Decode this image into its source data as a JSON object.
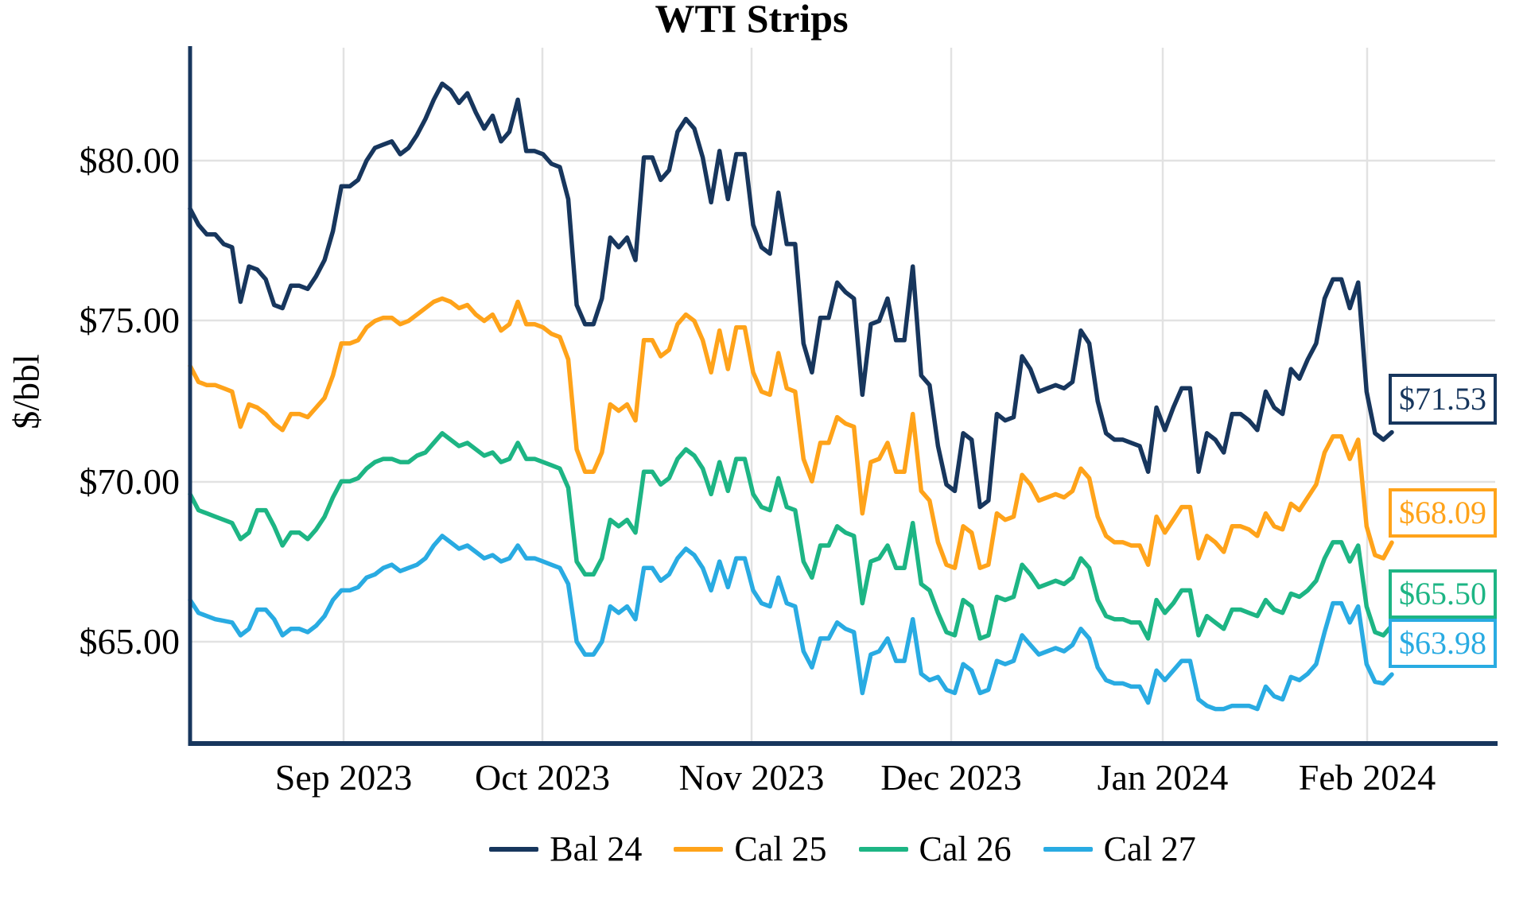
{
  "chart_data": {
    "type": "line",
    "title": "WTI Strips",
    "ylabel": "$/bbl",
    "grid": true,
    "legend_position": "bottom",
    "x_axis": {
      "tick_labels": [
        "Sep 2023",
        "Oct 2023",
        "Nov 2023",
        "Dec 2023",
        "Jan 2024",
        "Feb 2024"
      ],
      "range_dates": [
        "Aug 2023",
        "Feb 2024"
      ]
    },
    "y_axis": {
      "tick_labels": [
        "$80.00",
        "$75.00",
        "$70.00",
        "$65.00"
      ],
      "tick_values": [
        80,
        75,
        70,
        65
      ],
      "range": [
        61.8,
        83.5
      ]
    },
    "series": [
      {
        "name": "Bal 24",
        "color": "#17365d",
        "end_label": "$71.53",
        "last_value": 71.53,
        "values": [
          78.5,
          78.0,
          77.7,
          77.7,
          77.4,
          77.3,
          75.6,
          76.7,
          76.6,
          76.3,
          75.5,
          75.4,
          76.1,
          76.1,
          76.0,
          76.4,
          76.9,
          77.8,
          79.2,
          79.2,
          79.4,
          80.0,
          80.4,
          80.5,
          80.6,
          80.2,
          80.4,
          80.8,
          81.3,
          81.9,
          82.4,
          82.2,
          81.8,
          82.1,
          81.5,
          81.0,
          81.4,
          80.6,
          80.9,
          81.9,
          80.3,
          80.3,
          80.2,
          79.9,
          79.8,
          78.8,
          75.5,
          74.9,
          74.9,
          75.7,
          77.6,
          77.3,
          77.6,
          76.9,
          80.1,
          80.1,
          79.4,
          79.7,
          80.9,
          81.3,
          81.0,
          80.1,
          78.7,
          80.3,
          78.8,
          80.2,
          80.2,
          78.0,
          77.3,
          77.1,
          79.0,
          77.4,
          77.4,
          74.3,
          73.4,
          75.1,
          75.1,
          76.2,
          75.9,
          75.7,
          72.7,
          74.9,
          75.0,
          75.7,
          74.4,
          74.4,
          76.7,
          73.3,
          73.0,
          71.1,
          69.9,
          69.7,
          71.5,
          71.3,
          69.2,
          69.4,
          72.1,
          71.9,
          72.0,
          73.9,
          73.5,
          72.8,
          72.9,
          73.0,
          72.9,
          73.1,
          74.7,
          74.3,
          72.5,
          71.5,
          71.3,
          71.3,
          71.2,
          71.1,
          70.3,
          72.3,
          71.6,
          72.3,
          72.9,
          72.9,
          70.3,
          71.5,
          71.3,
          70.9,
          72.1,
          72.1,
          71.9,
          71.6,
          72.8,
          72.3,
          72.1,
          73.5,
          73.2,
          73.8,
          74.3,
          75.7,
          76.3,
          76.3,
          75.4,
          76.2,
          72.8,
          71.5,
          71.3,
          71.53
        ]
      },
      {
        "name": "Cal 25",
        "color": "#ffa31a",
        "end_label": "$68.09",
        "last_value": 68.09,
        "values": [
          73.6,
          73.1,
          73.0,
          73.0,
          72.9,
          72.8,
          71.7,
          72.4,
          72.3,
          72.1,
          71.8,
          71.6,
          72.1,
          72.1,
          72.0,
          72.3,
          72.6,
          73.3,
          74.3,
          74.3,
          74.4,
          74.8,
          75.0,
          75.1,
          75.1,
          74.9,
          75.0,
          75.2,
          75.4,
          75.6,
          75.7,
          75.6,
          75.4,
          75.5,
          75.2,
          75.0,
          75.2,
          74.7,
          74.9,
          75.6,
          74.9,
          74.9,
          74.8,
          74.6,
          74.5,
          73.8,
          71.0,
          70.3,
          70.3,
          70.9,
          72.4,
          72.2,
          72.4,
          71.9,
          74.4,
          74.4,
          73.9,
          74.1,
          74.9,
          75.2,
          75.0,
          74.4,
          73.4,
          74.7,
          73.5,
          74.8,
          74.8,
          73.4,
          72.8,
          72.7,
          74.0,
          72.9,
          72.8,
          70.7,
          70.0,
          71.2,
          71.2,
          72.0,
          71.8,
          71.7,
          69.0,
          70.6,
          70.7,
          71.2,
          70.3,
          70.3,
          72.1,
          69.7,
          69.4,
          68.1,
          67.4,
          67.3,
          68.6,
          68.4,
          67.3,
          67.4,
          69.0,
          68.8,
          68.9,
          70.2,
          69.9,
          69.4,
          69.5,
          69.6,
          69.5,
          69.7,
          70.4,
          70.1,
          68.9,
          68.3,
          68.1,
          68.1,
          68.0,
          68.0,
          67.4,
          68.9,
          68.4,
          68.8,
          69.2,
          69.2,
          67.6,
          68.3,
          68.1,
          67.8,
          68.6,
          68.6,
          68.5,
          68.3,
          69.0,
          68.6,
          68.5,
          69.3,
          69.1,
          69.5,
          69.9,
          70.9,
          71.4,
          71.4,
          70.7,
          71.3,
          68.6,
          67.7,
          67.6,
          68.09
        ]
      },
      {
        "name": "Cal 26",
        "color": "#1db584",
        "end_label": "$65.50",
        "last_value": 65.5,
        "values": [
          69.6,
          69.1,
          69.0,
          68.9,
          68.8,
          68.7,
          68.2,
          68.4,
          69.1,
          69.1,
          68.6,
          68.0,
          68.4,
          68.4,
          68.2,
          68.5,
          68.9,
          69.5,
          70.0,
          70.0,
          70.1,
          70.4,
          70.6,
          70.7,
          70.7,
          70.6,
          70.6,
          70.8,
          70.9,
          71.2,
          71.5,
          71.3,
          71.1,
          71.2,
          71.0,
          70.8,
          70.9,
          70.6,
          70.7,
          71.2,
          70.7,
          70.7,
          70.6,
          70.5,
          70.4,
          69.8,
          67.5,
          67.1,
          67.1,
          67.6,
          68.8,
          68.6,
          68.8,
          68.4,
          70.3,
          70.3,
          69.9,
          70.1,
          70.7,
          71.0,
          70.8,
          70.4,
          69.6,
          70.6,
          69.7,
          70.7,
          70.7,
          69.6,
          69.2,
          69.1,
          70.1,
          69.2,
          69.1,
          67.5,
          67.0,
          68.0,
          68.0,
          68.6,
          68.4,
          68.3,
          66.2,
          67.5,
          67.6,
          68.0,
          67.3,
          67.3,
          68.7,
          66.8,
          66.6,
          65.9,
          65.3,
          65.2,
          66.3,
          66.1,
          65.1,
          65.2,
          66.4,
          66.3,
          66.4,
          67.4,
          67.1,
          66.7,
          66.8,
          66.9,
          66.8,
          67.0,
          67.6,
          67.3,
          66.3,
          65.8,
          65.7,
          65.7,
          65.6,
          65.6,
          65.1,
          66.3,
          65.9,
          66.2,
          66.6,
          66.6,
          65.2,
          65.8,
          65.6,
          65.4,
          66.0,
          66.0,
          65.9,
          65.8,
          66.3,
          66.0,
          65.9,
          66.5,
          66.4,
          66.6,
          66.9,
          67.6,
          68.1,
          68.1,
          67.5,
          68.0,
          66.1,
          65.3,
          65.2,
          65.5
        ]
      },
      {
        "name": "Cal 27",
        "color": "#29abe2",
        "end_label": "$63.98",
        "last_value": 63.98,
        "values": [
          66.3,
          65.9,
          65.8,
          65.7,
          65.65,
          65.6,
          65.2,
          65.4,
          66.0,
          66.0,
          65.7,
          65.2,
          65.4,
          65.4,
          65.3,
          65.5,
          65.8,
          66.3,
          66.6,
          66.6,
          66.7,
          67.0,
          67.1,
          67.3,
          67.4,
          67.2,
          67.3,
          67.4,
          67.6,
          68.0,
          68.3,
          68.1,
          67.9,
          68.0,
          67.8,
          67.6,
          67.7,
          67.5,
          67.6,
          68.0,
          67.6,
          67.6,
          67.5,
          67.4,
          67.3,
          66.8,
          65.0,
          64.6,
          64.6,
          65.0,
          66.1,
          65.9,
          66.1,
          65.7,
          67.3,
          67.3,
          66.9,
          67.1,
          67.6,
          67.9,
          67.7,
          67.3,
          66.6,
          67.5,
          66.7,
          67.6,
          67.6,
          66.6,
          66.2,
          66.1,
          67.0,
          66.2,
          66.1,
          64.7,
          64.2,
          65.1,
          65.1,
          65.6,
          65.4,
          65.3,
          63.4,
          64.6,
          64.7,
          65.1,
          64.4,
          64.4,
          65.7,
          64.0,
          63.8,
          63.9,
          63.5,
          63.4,
          64.3,
          64.1,
          63.4,
          63.5,
          64.4,
          64.3,
          64.4,
          65.2,
          64.9,
          64.6,
          64.7,
          64.8,
          64.7,
          64.9,
          65.4,
          65.1,
          64.2,
          63.8,
          63.7,
          63.7,
          63.6,
          63.6,
          63.1,
          64.1,
          63.8,
          64.1,
          64.4,
          64.4,
          63.2,
          63.0,
          62.9,
          62.9,
          63.0,
          63.0,
          63.0,
          62.9,
          63.6,
          63.3,
          63.2,
          63.9,
          63.8,
          64.0,
          64.3,
          65.3,
          66.2,
          66.2,
          65.6,
          66.1,
          64.3,
          63.75,
          63.7,
          63.98
        ]
      }
    ],
    "style": {
      "gridline_color": "#e2e2e2",
      "axis_color": "#17365d",
      "background": "#ffffff"
    }
  }
}
